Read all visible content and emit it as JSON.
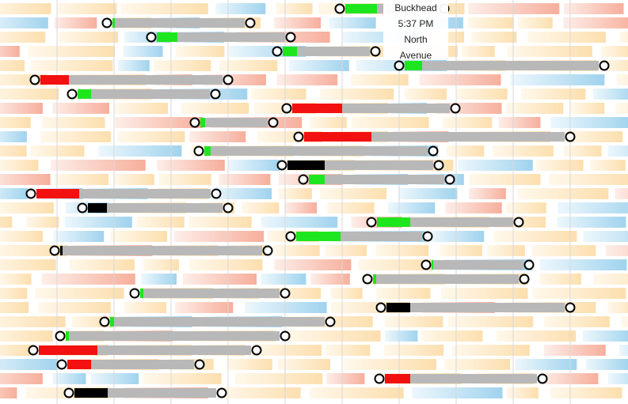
{
  "tooltip": {
    "station": "Buckhead",
    "time": "5:37 PM",
    "line2a": "North",
    "line2b": "Avenue"
  },
  "colors": {
    "band_orange": "#fde2b5",
    "band_blue": "#a9d8f0",
    "band_salmon": "#f9b4a2",
    "gray_bar": "#b8b8b8",
    "status_green": "#1ee61e",
    "status_red": "#f21010",
    "status_black": "#000000",
    "circle_stroke": "#000000",
    "circle_fill": "#ffffff"
  },
  "chart_data": {
    "type": "gantt-like trip timeline",
    "rows": [
      {
        "row": 0,
        "start": 429,
        "end": 561,
        "status": "green",
        "status_len": 40
      },
      {
        "row": 1,
        "start": 135,
        "end": 316,
        "status": "green",
        "status_len": 3
      },
      {
        "row": 2,
        "start": 191,
        "end": 367,
        "status": "green",
        "status_len": 26
      },
      {
        "row": 3,
        "start": 350,
        "end": 474,
        "status": "green",
        "status_len": 18
      },
      {
        "row": 4,
        "start": 504,
        "end": 763,
        "status": "green",
        "status_len": 22
      },
      {
        "row": 5,
        "start": 44,
        "end": 288,
        "status": "red",
        "status_len": 36
      },
      {
        "row": 6,
        "start": 91,
        "end": 272,
        "status": "green",
        "status_len": 17
      },
      {
        "row": 7,
        "start": 362,
        "end": 575,
        "status": "red",
        "status_len": 63
      },
      {
        "row": 8,
        "start": 246,
        "end": 345,
        "status": "green",
        "status_len": 6
      },
      {
        "row": 9,
        "start": 377,
        "end": 720,
        "status": "red",
        "status_len": 85
      },
      {
        "row": 10,
        "start": 251,
        "end": 547,
        "status": "green",
        "status_len": 8
      },
      {
        "row": 11,
        "start": 356,
        "end": 554,
        "status": "black",
        "status_len": 47
      },
      {
        "row": 12,
        "start": 383,
        "end": 568,
        "status": "green",
        "status_len": 20
      },
      {
        "row": 13,
        "start": 39,
        "end": 273,
        "status": "red",
        "status_len": 54
      },
      {
        "row": 14,
        "start": 104,
        "end": 288,
        "status": "black",
        "status_len": 24
      },
      {
        "row": 15,
        "start": 469,
        "end": 655,
        "status": "green",
        "status_len": 42
      },
      {
        "row": 16,
        "start": 367,
        "end": 540,
        "status": "green",
        "status_len": 56
      },
      {
        "row": 17,
        "start": 69,
        "end": 338,
        "status": "black",
        "status_len": 3
      },
      {
        "row": 18,
        "start": 538,
        "end": 668,
        "status": "green",
        "status_len": 2
      },
      {
        "row": 19,
        "start": 464,
        "end": 662,
        "status": "green",
        "status_len": 4
      },
      {
        "row": 20,
        "start": 170,
        "end": 360,
        "status": "green",
        "status_len": 4
      },
      {
        "row": 21,
        "start": 481,
        "end": 720,
        "status": "black",
        "status_len": 30
      },
      {
        "row": 22,
        "start": 132,
        "end": 417,
        "status": "green",
        "status_len": 5
      },
      {
        "row": 23,
        "start": 76,
        "end": 360,
        "status": "green",
        "status_len": 4
      },
      {
        "row": 24,
        "start": 42,
        "end": 324,
        "status": "red",
        "status_len": 74
      },
      {
        "row": 25,
        "start": 78,
        "end": 252,
        "status": "red",
        "status_len": 30
      },
      {
        "row": 26,
        "start": 479,
        "end": 685,
        "status": "red",
        "status_len": 32
      },
      {
        "row": 27,
        "start": 87,
        "end": 280,
        "status": "black",
        "status_len": 42
      }
    ]
  }
}
